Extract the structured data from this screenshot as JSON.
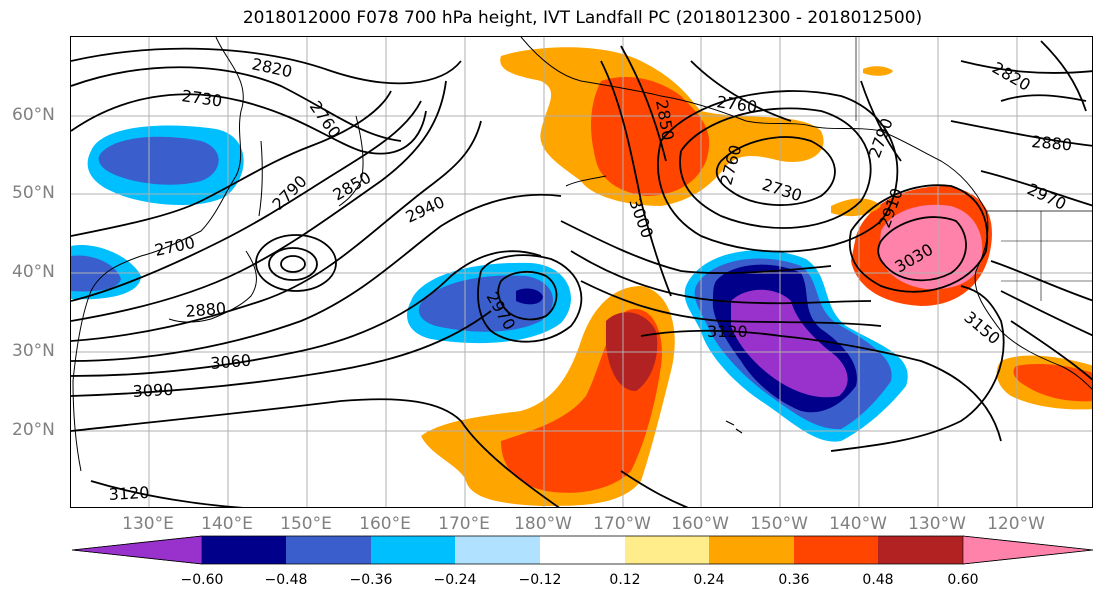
{
  "title": "2018012000 F078 700 hPa height, IVT Landfall PC (2018012300 - 2018012500)",
  "axes": {
    "lat_labels": [
      "60°N",
      "50°N",
      "40°N",
      "30°N",
      "20°N"
    ],
    "lon_labels": [
      "130°E",
      "140°E",
      "150°E",
      "160°E",
      "170°E",
      "180°W",
      "170°W",
      "160°W",
      "150°W",
      "140°W",
      "130°W",
      "120°W"
    ]
  },
  "contour_labels": [
    "2820",
    "2730",
    "2760",
    "2790",
    "2850",
    "2700",
    "2940",
    "2880",
    "3060",
    "3090",
    "3120",
    "2970",
    "3120",
    "2850",
    "2760",
    "2760",
    "3000",
    "2730",
    "2910",
    "3030",
    "2790",
    "2820",
    "2880",
    "2970",
    "3150"
  ],
  "colorbar": {
    "ticks": [
      "−0.60",
      "−0.48",
      "−0.36",
      "−0.24",
      "−0.12",
      "0.12",
      "0.24",
      "0.36",
      "0.48",
      "0.60"
    ],
    "colors": [
      "#9932CC",
      "#00008B",
      "#3A5FCD",
      "#00BFFF",
      "#B0E2FF",
      "#FFFFFF",
      "#FFEC8B",
      "#FFA500",
      "#FF4500",
      "#B22222",
      "#FF82AB"
    ]
  }
}
